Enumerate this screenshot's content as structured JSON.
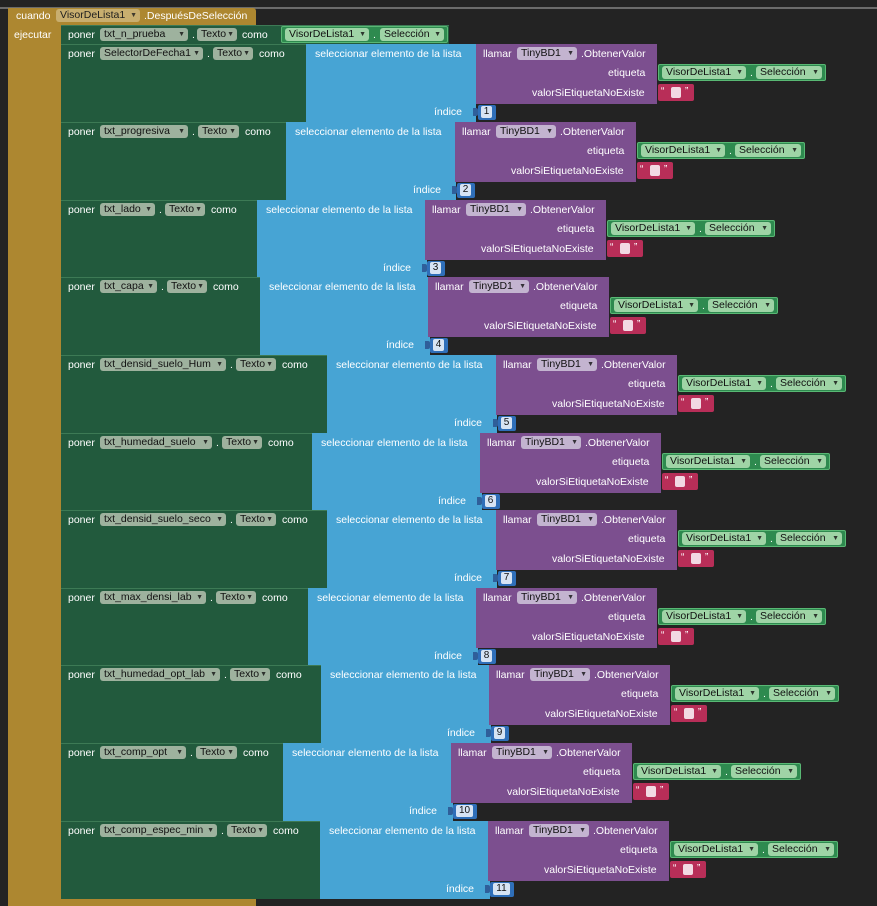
{
  "event": {
    "cuando_label": "cuando",
    "component": "VisorDeLista1",
    "event_name": ".DespuésDeSelección",
    "ejecutar_label": "ejecutar"
  },
  "first_statement": {
    "poner": "poner",
    "component": "txt_n_prueba",
    "property": "Texto",
    "como": "como",
    "value_component": "VisorDeLista1",
    "value_property": "Selección"
  },
  "labels": {
    "poner": "poner",
    "como": "como",
    "select": "seleccionar elemento de la lista",
    "llamar": "llamar",
    "tinydb": "TinyBD1",
    "method": ".ObtenerValor",
    "etiqueta": "etiqueta",
    "valor_si": "valorSiEtiquetaNoExiste",
    "indice": "índice",
    "property": "Texto",
    "visor": "VisorDeLista1",
    "seleccion": "Selección",
    "dot": "."
  },
  "statements": [
    {
      "component": "SelectorDeFecha1",
      "index": "1"
    },
    {
      "component": "txt_progresiva",
      "index": "2"
    },
    {
      "component": "txt_lado",
      "index": "3"
    },
    {
      "component": "txt_capa",
      "index": "4"
    },
    {
      "component": "txt_densid_suelo_Hum",
      "index": "5"
    },
    {
      "component": "txt_humedad_suelo",
      "index": "6"
    },
    {
      "component": "txt_densid_suelo_seco",
      "index": "7"
    },
    {
      "component": "txt_max_densi_lab",
      "index": "8"
    },
    {
      "component": "txt_humedad_opt_lab",
      "index": "9"
    },
    {
      "component": "txt_comp_opt",
      "index": "10"
    },
    {
      "component": "txt_comp_espec_min",
      "index": "11"
    }
  ],
  "icons": {
    "dropdown": "chevron-down-icon",
    "quote_open": "“",
    "quote_close": "”"
  },
  "colors": {
    "event": "#ad8730",
    "setter": "#225a3d",
    "list_select": "#47a4d4",
    "procedure_call": "#7c4f8f",
    "component_getter": "#2e8a4f",
    "text_string": "#b82e58",
    "number": "#2f6fb9"
  }
}
